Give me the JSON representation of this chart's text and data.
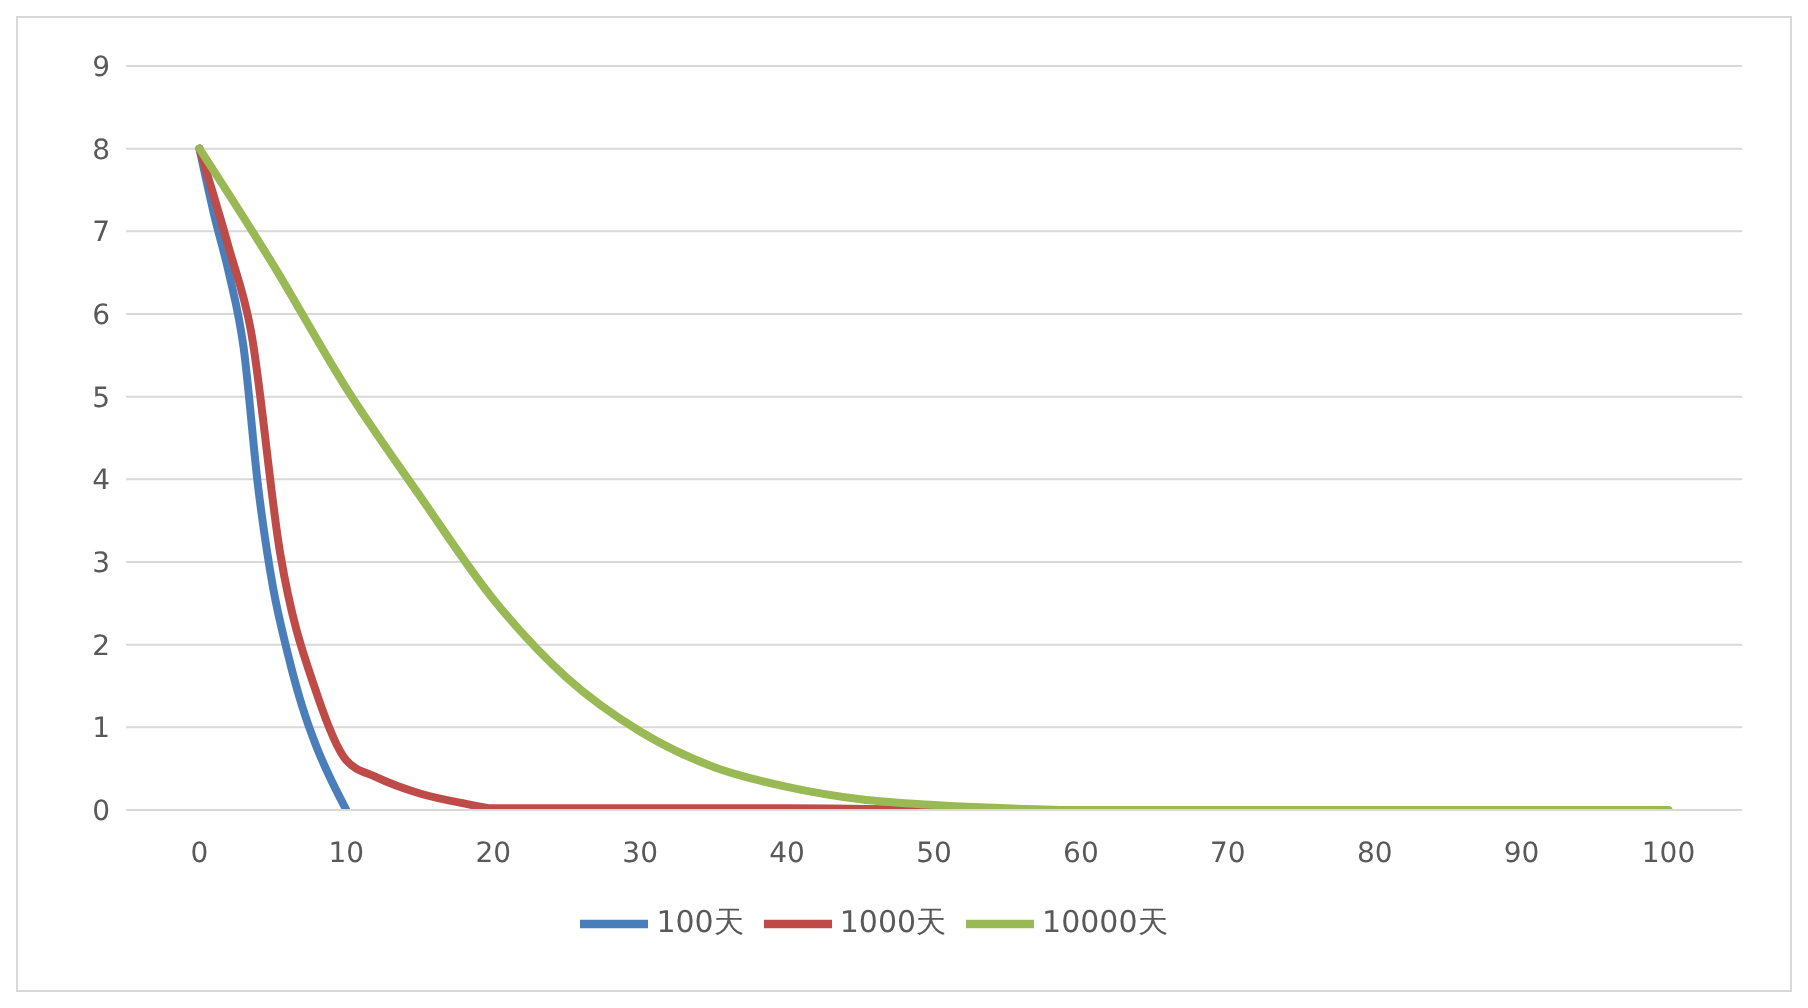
{
  "chart_data": {
    "type": "line",
    "xlim": [
      -5,
      105
    ],
    "xticks": [
      0,
      10,
      20,
      30,
      40,
      50,
      60,
      70,
      80,
      90,
      100
    ],
    "ylim": [
      0,
      9
    ],
    "yticks": [
      0,
      1,
      2,
      3,
      4,
      5,
      6,
      7,
      8,
      9
    ],
    "grid": "y",
    "legend": "bottom",
    "marker": "none",
    "line_style": "solid",
    "series": [
      {
        "name": "100天",
        "color": "#4a7ebb",
        "x": [
          0,
          1,
          2,
          3,
          4,
          5,
          6,
          7,
          8,
          9,
          10
        ],
        "values": [
          8,
          7.2,
          6.5,
          5.6,
          3.9,
          2.7,
          1.9,
          1.25,
          0.75,
          0.35,
          0
        ]
      },
      {
        "name": "1000天",
        "color": "#be4b48",
        "x": [
          0,
          2,
          3.5,
          5.5,
          8,
          10,
          12,
          15,
          18,
          20,
          30,
          40,
          50
        ],
        "values": [
          8,
          6.8,
          5.8,
          3.1,
          1.4,
          0.6,
          0.4,
          0.2,
          0.08,
          0.02,
          0.02,
          0.02,
          0
        ]
      },
      {
        "name": "10000天",
        "color": "#98b954",
        "x": [
          0,
          5,
          10,
          15,
          20,
          25,
          30,
          35,
          40,
          45,
          50,
          55,
          60,
          70,
          80,
          90,
          100
        ],
        "values": [
          8,
          6.6,
          5.1,
          3.8,
          2.55,
          1.6,
          0.95,
          0.52,
          0.28,
          0.13,
          0.06,
          0.02,
          0,
          0,
          0,
          0,
          0
        ]
      }
    ]
  }
}
